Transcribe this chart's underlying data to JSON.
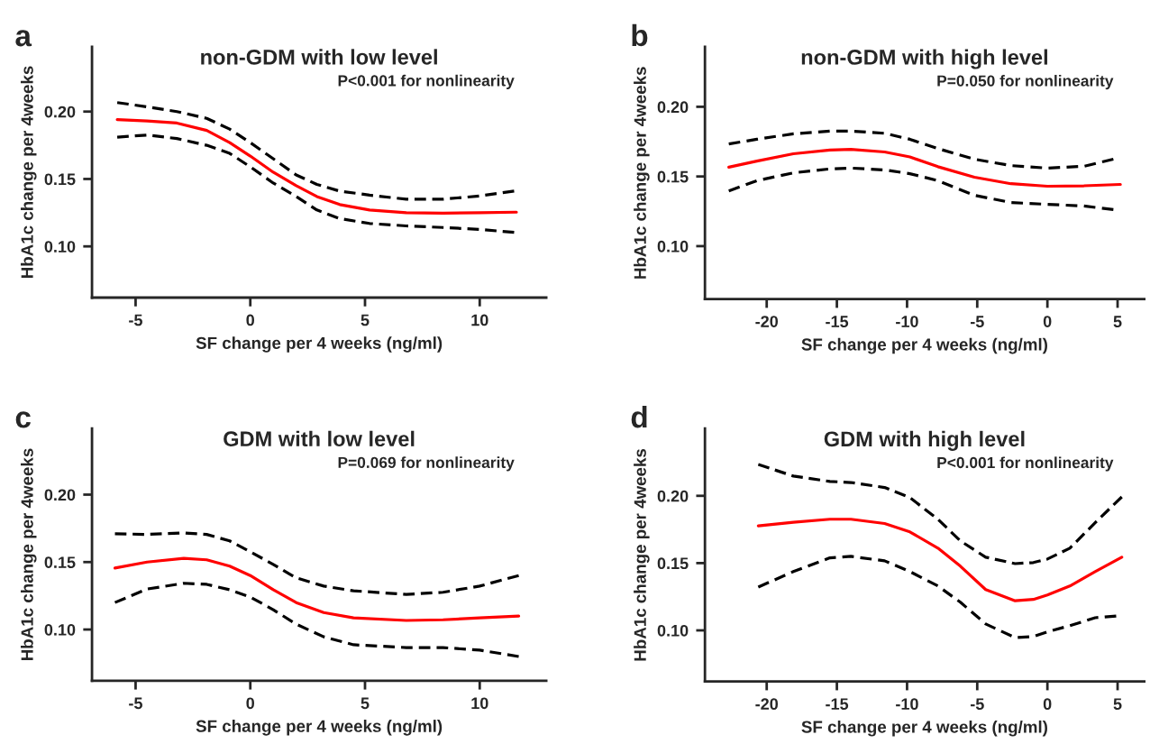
{
  "chart_data": [
    {
      "type": "line",
      "title": "non-GDM with low level",
      "xlabel": "SF change per 4 weeks (ng/ml)",
      "ylabel": "HbA1c change per 4weeks",
      "annotations": [
        "a",
        "P<0.001 for nonlinearity"
      ],
      "xlim": [
        -6.9,
        12.9
      ],
      "ylim": [
        0.062,
        0.248
      ],
      "xticks": [
        -5,
        0,
        5,
        10
      ],
      "yticks": [
        {
          "value": 0.1,
          "label": "0.10"
        },
        {
          "value": 0.15,
          "label": "0.15"
        },
        {
          "value": 0.2,
          "label": "0.20"
        }
      ],
      "series": [
        {
          "color": "#ff0000",
          "line_style": "solid",
          "x": [
            -5.8,
            -4.5,
            -3.2,
            -1.9,
            -0.9,
            0,
            1,
            2,
            2.9,
            3.9,
            5.2,
            6.8,
            8.4,
            10,
            11.6
          ],
          "values": [
            0.194,
            0.193,
            0.1915,
            0.186,
            0.177,
            0.167,
            0.155,
            0.145,
            0.137,
            0.131,
            0.127,
            0.125,
            0.1246,
            0.125,
            0.1254
          ]
        },
        {
          "color": "#000000",
          "line_style": "dashed",
          "x": [
            -5.8,
            -4.5,
            -3.2,
            -1.9,
            -0.9,
            0,
            1,
            2,
            2.9,
            3.9,
            5.2,
            6.8,
            8.4,
            10,
            11.5
          ],
          "values": [
            0.2067,
            0.2035,
            0.2,
            0.195,
            0.187,
            0.177,
            0.165,
            0.153,
            0.146,
            0.141,
            0.138,
            0.135,
            0.135,
            0.1374,
            0.141
          ]
        },
        {
          "color": "#000000",
          "line_style": "dashed",
          "x": [
            -5.8,
            -4.5,
            -3.2,
            -1.9,
            -0.9,
            0,
            1,
            2,
            2.9,
            3.9,
            5.2,
            6.8,
            8.4,
            10,
            11.5
          ],
          "values": [
            0.181,
            0.1826,
            0.18,
            0.175,
            0.169,
            0.159,
            0.147,
            0.137,
            0.127,
            0.1206,
            0.117,
            0.1152,
            0.114,
            0.1126,
            0.1104
          ]
        }
      ]
    },
    {
      "type": "line",
      "title": "non-GDM with high level",
      "xlabel": "SF change per 4 weeks (ng/ml)",
      "ylabel": "HbA1c change per 4weeks",
      "annotations": [
        "b",
        "P=0.050 for nonlinearity"
      ],
      "xlim": [
        -24.4,
        6.9
      ],
      "ylim": [
        0.062,
        0.243
      ],
      "xticks": [
        -20,
        -15,
        -10,
        -5,
        0,
        5
      ],
      "yticks": [
        {
          "value": 0.1,
          "label": "0.10"
        },
        {
          "value": 0.15,
          "label": "0.15"
        },
        {
          "value": 0.2,
          "label": "0.20"
        }
      ],
      "series": [
        {
          "color": "#ff0000",
          "line_style": "solid",
          "x": [
            -22.7,
            -20.7,
            -18.1,
            -15.5,
            -14,
            -11.6,
            -9.8,
            -7.8,
            -5.2,
            -2.6,
            0,
            2.6,
            5.2
          ],
          "values": [
            0.1567,
            0.161,
            0.1663,
            0.169,
            0.1694,
            0.1676,
            0.164,
            0.157,
            0.1495,
            0.1448,
            0.143,
            0.1433,
            0.1443
          ]
        },
        {
          "color": "#000000",
          "line_style": "dashed",
          "x": [
            -22.7,
            -20.7,
            -18.1,
            -15.5,
            -14,
            -11.6,
            -9.8,
            -7.8,
            -5.2,
            -2.6,
            0,
            2.6,
            4.7
          ],
          "values": [
            0.1733,
            0.1767,
            0.1806,
            0.1826,
            0.1826,
            0.181,
            0.1767,
            0.17,
            0.1624,
            0.1578,
            0.156,
            0.1573,
            0.1624
          ]
        },
        {
          "color": "#000000",
          "line_style": "dashed",
          "x": [
            -22.7,
            -20.7,
            -18.1,
            -15.5,
            -14,
            -11.6,
            -9.8,
            -7.8,
            -5.2,
            -2.6,
            0,
            2.6,
            4.7
          ],
          "values": [
            0.1396,
            0.147,
            0.1526,
            0.1554,
            0.156,
            0.1547,
            0.152,
            0.147,
            0.1365,
            0.1313,
            0.13,
            0.1288,
            0.1262
          ]
        }
      ]
    },
    {
      "type": "line",
      "title": "GDM with low level",
      "xlabel": "SF change per 4 weeks (ng/ml)",
      "ylabel": "HbA1c change per 4weeks",
      "annotations": [
        "c",
        "P=0.069 for nonlinearity"
      ],
      "xlim": [
        -6.9,
        12.9
      ],
      "ylim": [
        0.062,
        0.249
      ],
      "xticks": [
        -5,
        0,
        5,
        10
      ],
      "yticks": [
        {
          "value": 0.1,
          "label": "0.10"
        },
        {
          "value": 0.15,
          "label": "0.15"
        },
        {
          "value": 0.2,
          "label": "0.20"
        }
      ],
      "series": [
        {
          "color": "#ff0000",
          "line_style": "solid",
          "x": [
            -5.9,
            -4.5,
            -2.9,
            -1.9,
            -0.9,
            0,
            1,
            2,
            3.2,
            4.5,
            6.8,
            8.4,
            10,
            11.7
          ],
          "values": [
            0.1456,
            0.15,
            0.1528,
            0.1517,
            0.147,
            0.14,
            0.1295,
            0.12,
            0.1126,
            0.1086,
            0.1067,
            0.1072,
            0.1086,
            0.11
          ]
        },
        {
          "color": "#000000",
          "line_style": "dashed",
          "x": [
            -5.9,
            -4.5,
            -2.9,
            -1.9,
            -0.9,
            0,
            1,
            2,
            3.2,
            4.5,
            6.8,
            8.4,
            10,
            11.7
          ],
          "values": [
            0.171,
            0.1705,
            0.1716,
            0.1705,
            0.1657,
            0.1576,
            0.1483,
            0.1383,
            0.1322,
            0.1287,
            0.126,
            0.1276,
            0.1322,
            0.14
          ]
        },
        {
          "color": "#000000",
          "line_style": "dashed",
          "x": [
            -5.9,
            -4.5,
            -2.9,
            -1.9,
            -0.9,
            0,
            1,
            2,
            3.2,
            4.5,
            6.8,
            8.4,
            10,
            11.7
          ],
          "values": [
            0.12,
            0.13,
            0.1343,
            0.1335,
            0.1295,
            0.1241,
            0.1147,
            0.104,
            0.0946,
            0.0887,
            0.0866,
            0.0866,
            0.0847,
            0.08
          ]
        }
      ]
    },
    {
      "type": "line",
      "title": "GDM with high level",
      "xlabel": "SF change per 4 weeks (ng/ml)",
      "ylabel": "HbA1c change per 4weeks",
      "annotations": [
        "d",
        "P<0.001 for nonlinearity"
      ],
      "xlim": [
        -24.4,
        6.9
      ],
      "ylim": [
        0.062,
        0.25
      ],
      "xticks": [
        -20,
        -15,
        -10,
        -5,
        0,
        5
      ],
      "yticks": [
        {
          "value": 0.1,
          "label": "0.10"
        },
        {
          "value": 0.15,
          "label": "0.15"
        },
        {
          "value": 0.2,
          "label": "0.20"
        }
      ],
      "series": [
        {
          "color": "#ff0000",
          "line_style": "solid",
          "x": [
            -20.6,
            -18.1,
            -15.5,
            -14,
            -11.6,
            -9.8,
            -7.8,
            -6.2,
            -4.4,
            -2.3,
            -1,
            0,
            1.6,
            3.4,
            5.3
          ],
          "values": [
            0.1777,
            0.1804,
            0.1826,
            0.1826,
            0.1794,
            0.1732,
            0.1611,
            0.1477,
            0.1303,
            0.122,
            0.123,
            0.1263,
            0.133,
            0.1437,
            0.1544
          ]
        },
        {
          "color": "#000000",
          "line_style": "dashed",
          "x": [
            -20.6,
            -18.1,
            -15.5,
            -14,
            -11.6,
            -9.8,
            -7.8,
            -6.2,
            -4.4,
            -2.3,
            -1,
            0,
            1.6,
            3.4,
            5.3
          ],
          "values": [
            0.2233,
            0.2147,
            0.2107,
            0.2099,
            0.2062,
            0.1987,
            0.1826,
            0.1665,
            0.1544,
            0.1496,
            0.1504,
            0.153,
            0.1611,
            0.18,
            0.1992
          ]
        },
        {
          "color": "#000000",
          "line_style": "dashed",
          "x": [
            -20.6,
            -18.1,
            -15.5,
            -14,
            -11.6,
            -9.8,
            -7.8,
            -6.2,
            -4.4,
            -2.3,
            -1,
            0,
            1.6,
            3.4,
            4.9
          ],
          "values": [
            0.1322,
            0.1437,
            0.1539,
            0.155,
            0.1517,
            0.1437,
            0.133,
            0.1209,
            0.1048,
            0.0946,
            0.0954,
            0.0989,
            0.1035,
            0.1094,
            0.1107
          ]
        }
      ]
    }
  ]
}
